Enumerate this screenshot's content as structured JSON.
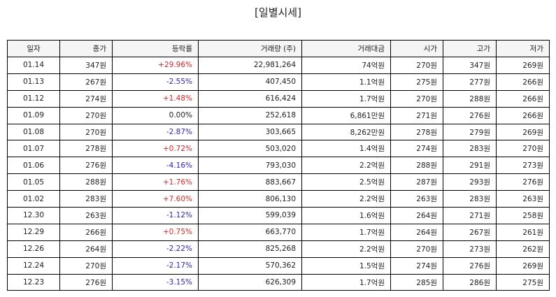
{
  "title": "[일별시세]",
  "table": {
    "headers": [
      "일자",
      "종가",
      "등락률",
      "거래량 (주)",
      "거래대금",
      "시가",
      "고가",
      "저가"
    ],
    "rows": [
      {
        "date": "01.14",
        "close": "347원",
        "change": "+29.96%",
        "dir": "up",
        "volume": "22,981,264",
        "amount": "74억원",
        "open": "270원",
        "high": "347원",
        "low": "269원"
      },
      {
        "date": "01.13",
        "close": "267원",
        "change": "-2.55%",
        "dir": "down",
        "volume": "407,450",
        "amount": "1.1억원",
        "open": "275원",
        "high": "277원",
        "low": "266원"
      },
      {
        "date": "01.12",
        "close": "274원",
        "change": "+1.48%",
        "dir": "up",
        "volume": "616,424",
        "amount": "1.7억원",
        "open": "270원",
        "high": "288원",
        "low": "266원"
      },
      {
        "date": "01.09",
        "close": "270원",
        "change": "0.00%",
        "dir": "flat",
        "volume": "252,618",
        "amount": "6,861만원",
        "open": "271원",
        "high": "276원",
        "low": "266원"
      },
      {
        "date": "01.08",
        "close": "270원",
        "change": "-2.87%",
        "dir": "down",
        "volume": "303,665",
        "amount": "8,262만원",
        "open": "278원",
        "high": "279원",
        "low": "269원"
      },
      {
        "date": "01.07",
        "close": "278원",
        "change": "+0.72%",
        "dir": "up",
        "volume": "503,020",
        "amount": "1.4억원",
        "open": "274원",
        "high": "283원",
        "low": "270원"
      },
      {
        "date": "01.06",
        "close": "276원",
        "change": "-4.16%",
        "dir": "down",
        "volume": "793,030",
        "amount": "2.2억원",
        "open": "288원",
        "high": "291원",
        "low": "273원"
      },
      {
        "date": "01.05",
        "close": "288원",
        "change": "+1.76%",
        "dir": "up",
        "volume": "883,667",
        "amount": "2.5억원",
        "open": "287원",
        "high": "293원",
        "low": "276원"
      },
      {
        "date": "01.02",
        "close": "283원",
        "change": "+7.60%",
        "dir": "up",
        "volume": "806,130",
        "amount": "2.2억원",
        "open": "263원",
        "high": "283원",
        "low": "263원"
      },
      {
        "date": "12.30",
        "close": "263원",
        "change": "-1.12%",
        "dir": "down",
        "volume": "599,039",
        "amount": "1.6억원",
        "open": "264원",
        "high": "271원",
        "low": "258원"
      },
      {
        "date": "12.29",
        "close": "266원",
        "change": "+0.75%",
        "dir": "up",
        "volume": "663,770",
        "amount": "1.7억원",
        "open": "264원",
        "high": "267원",
        "low": "261원"
      },
      {
        "date": "12.26",
        "close": "264원",
        "change": "-2.22%",
        "dir": "down",
        "volume": "825,268",
        "amount": "2.2억원",
        "open": "270원",
        "high": "273원",
        "low": "262원"
      },
      {
        "date": "12.24",
        "close": "270원",
        "change": "-2.17%",
        "dir": "down",
        "volume": "570,362",
        "amount": "1.5억원",
        "open": "274원",
        "high": "276원",
        "low": "269원"
      },
      {
        "date": "12.23",
        "close": "276원",
        "change": "-3.15%",
        "dir": "down",
        "volume": "626,309",
        "amount": "1.7억원",
        "open": "285원",
        "high": "286원",
        "low": "275원"
      }
    ]
  },
  "colors": {
    "up": "#d42a2a",
    "down": "#2a2ab4",
    "flat": "#222222",
    "header_bg": "#f5f5f5",
    "border": "#000000"
  }
}
